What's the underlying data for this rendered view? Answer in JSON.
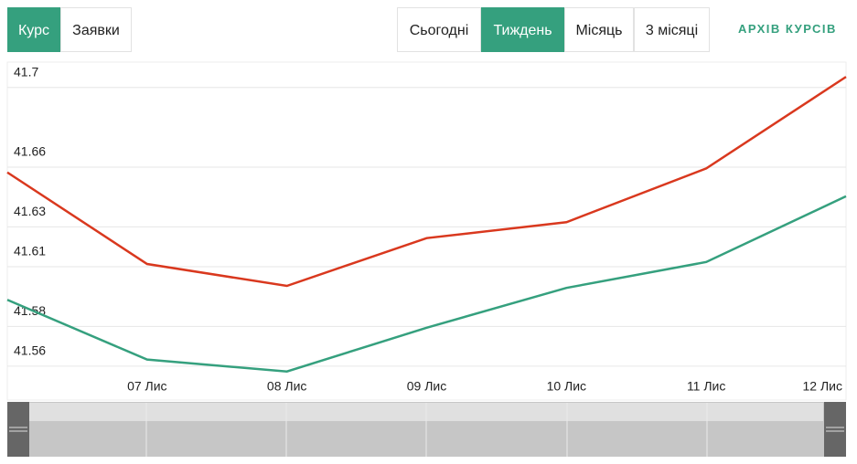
{
  "ui": {
    "tabs": [
      "Курс",
      "Заявки"
    ],
    "periods": [
      "Сьогодні",
      "Тиждень",
      "Місяць",
      "3 місяці"
    ],
    "archive_link": "АРХІВ КУРСІВ"
  },
  "chart_data": {
    "type": "line",
    "categories": [
      null,
      "07 Лис",
      "08 Лис",
      "09 Лис",
      "10 Лис",
      "11 Лис",
      "12 Лис"
    ],
    "series": [
      {
        "color": "#d9381e",
        "values": [
          41.65,
          41.604,
          41.593,
          41.617,
          41.625,
          41.652,
          41.698
        ]
      },
      {
        "color": "#35a07e",
        "values": [
          41.586,
          41.556,
          41.55,
          41.572,
          41.592,
          41.605,
          41.638
        ]
      }
    ],
    "ylim": [
      41.5485,
      41.7054
    ],
    "yticks": [
      41.56,
      41.58,
      41.61,
      41.63,
      41.66,
      41.7
    ],
    "grid": true
  }
}
